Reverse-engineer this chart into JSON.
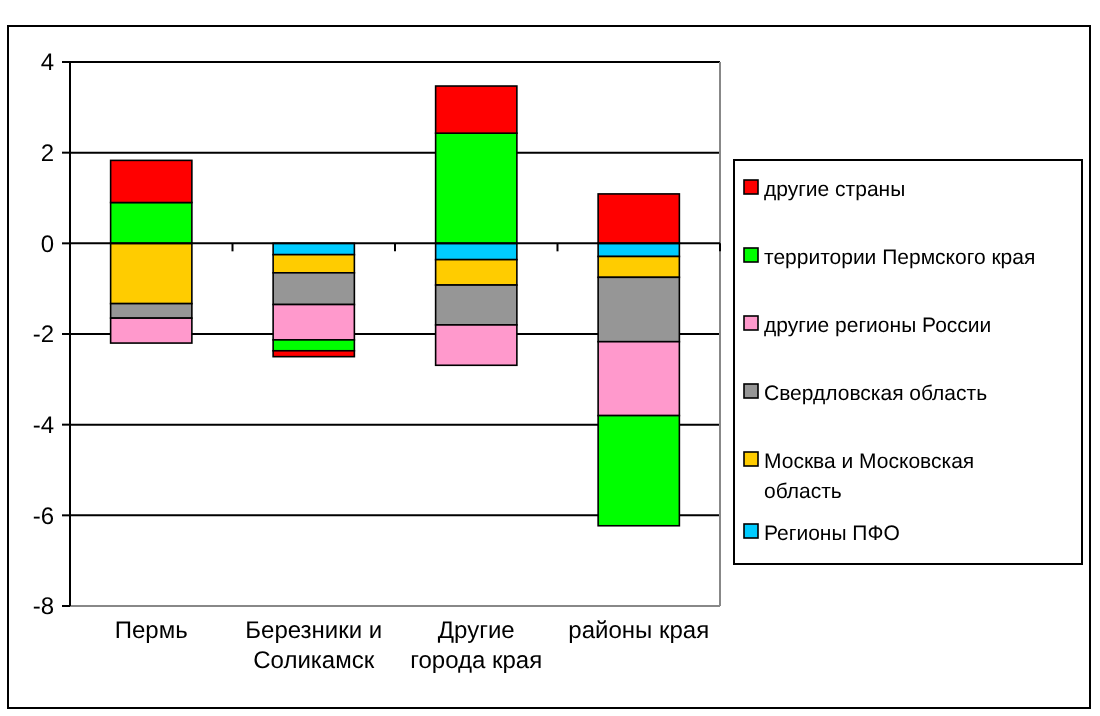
{
  "chart_data": {
    "type": "bar",
    "stacked": true,
    "categories": [
      "Пермь",
      "Березники и Соликамск",
      "Другие города края",
      "районы края"
    ],
    "series": [
      {
        "name": "Регионы ПФО",
        "color": "#00ccff",
        "values": [
          0,
          -0.25,
          -0.36,
          -0.29
        ]
      },
      {
        "name": "Москва и Московская область",
        "color": "#ffcc00",
        "values": [
          -1.33,
          -0.4,
          -0.56,
          -0.46
        ]
      },
      {
        "name": "Свердловская область",
        "color": "#969696",
        "values": [
          -0.32,
          -0.7,
          -0.88,
          -1.42
        ]
      },
      {
        "name": "другие регионы России",
        "color": "#ff99cc",
        "values": [
          -0.55,
          -0.78,
          -0.89,
          -1.63
        ]
      },
      {
        "name": "территории Пермского края",
        "color": "#00ff00",
        "values": [
          0.9,
          -0.24,
          2.43,
          -2.43
        ]
      },
      {
        "name": "другие страны",
        "color": "#ff0000",
        "values": [
          0.93,
          -0.13,
          1.04,
          1.09
        ]
      }
    ],
    "ylim": [
      -8,
      4
    ],
    "yticks": [
      -8,
      -6,
      -4,
      -2,
      0,
      2,
      4
    ],
    "grid": "y",
    "legend": "right"
  }
}
